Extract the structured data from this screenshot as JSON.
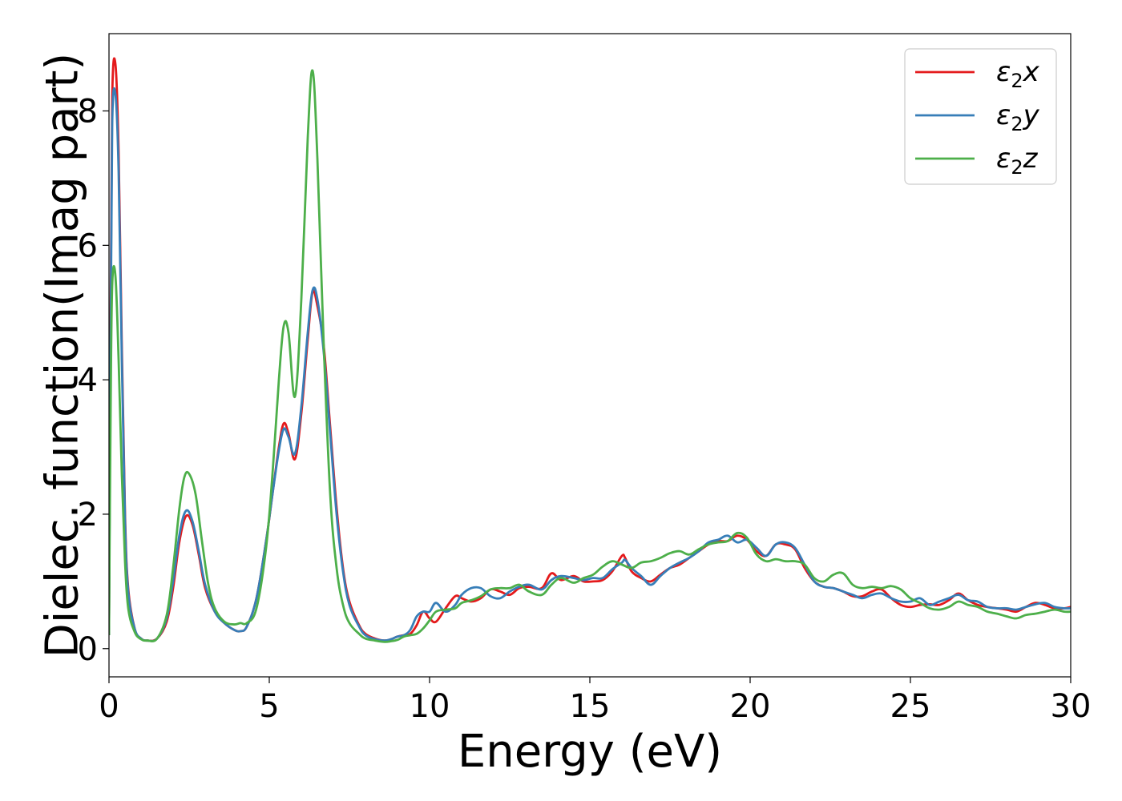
{
  "chart_data": {
    "type": "line",
    "xlabel": "Energy (eV)",
    "ylabel": "Dielec. function(Imag part)",
    "xlim": [
      0,
      30
    ],
    "ylim": [
      -0.42,
      9.15
    ],
    "x_ticks": [
      0,
      5,
      10,
      15,
      20,
      25,
      30
    ],
    "y_ticks": [
      0,
      2,
      4,
      6,
      8
    ],
    "grid": false,
    "legend_position": "top-right",
    "series": [
      {
        "name": "ε₂x",
        "legend_base": "ε",
        "legend_sub": "2",
        "legend_suffix": "x",
        "color": "#e41a1c",
        "x": [
          0,
          0.05,
          0.1,
          0.2,
          0.3,
          0.4,
          0.5,
          0.6,
          0.8,
          1.0,
          1.2,
          1.5,
          1.8,
          2.0,
          2.2,
          2.4,
          2.6,
          2.8,
          3.0,
          3.3,
          3.6,
          3.9,
          4.1,
          4.3,
          4.6,
          4.9,
          5.1,
          5.3,
          5.45,
          5.6,
          5.8,
          6.0,
          6.2,
          6.35,
          6.5,
          6.7,
          6.9,
          7.1,
          7.3,
          7.5,
          7.8,
          8.0,
          8.3,
          8.6,
          8.8,
          9.0,
          9.2,
          9.4,
          9.6,
          9.8,
          10.0,
          10.2,
          10.5,
          10.8,
          11.0,
          11.3,
          11.6,
          11.9,
          12.2,
          12.5,
          12.8,
          13.1,
          13.5,
          13.8,
          14.1,
          14.5,
          14.8,
          15.1,
          15.4,
          15.7,
          16.0,
          16.1,
          16.3,
          16.6,
          16.9,
          17.2,
          17.5,
          17.8,
          18.1,
          18.4,
          18.7,
          19.0,
          19.3,
          19.6,
          19.9,
          20.2,
          20.5,
          20.8,
          21.1,
          21.4,
          21.7,
          22.0,
          22.3,
          22.6,
          22.9,
          23.2,
          23.5,
          23.8,
          24.1,
          24.4,
          24.7,
          25.0,
          25.3,
          25.6,
          25.9,
          26.2,
          26.5,
          26.8,
          27.1,
          27.4,
          27.7,
          28.0,
          28.3,
          28.6,
          28.9,
          29.2,
          29.5,
          29.8,
          30.0
        ],
        "y": [
          0.2,
          5.0,
          8.2,
          8.7,
          7.4,
          4.5,
          2.0,
          0.9,
          0.3,
          0.15,
          0.12,
          0.15,
          0.4,
          0.9,
          1.6,
          1.97,
          1.85,
          1.4,
          0.9,
          0.55,
          0.38,
          0.28,
          0.26,
          0.33,
          0.75,
          1.6,
          2.3,
          3.0,
          3.35,
          3.2,
          2.82,
          3.5,
          4.6,
          5.3,
          5.1,
          4.5,
          3.3,
          2.1,
          1.2,
          0.7,
          0.35,
          0.22,
          0.15,
          0.12,
          0.14,
          0.18,
          0.2,
          0.22,
          0.35,
          0.55,
          0.45,
          0.4,
          0.6,
          0.78,
          0.75,
          0.7,
          0.75,
          0.88,
          0.85,
          0.8,
          0.9,
          0.92,
          0.9,
          1.12,
          1.02,
          1.08,
          1.0,
          1.0,
          1.02,
          1.15,
          1.38,
          1.35,
          1.15,
          1.05,
          1.0,
          1.1,
          1.2,
          1.25,
          1.35,
          1.45,
          1.55,
          1.6,
          1.6,
          1.68,
          1.62,
          1.45,
          1.38,
          1.55,
          1.55,
          1.48,
          1.2,
          1.0,
          0.92,
          0.9,
          0.85,
          0.78,
          0.78,
          0.85,
          0.88,
          0.75,
          0.65,
          0.62,
          0.65,
          0.66,
          0.65,
          0.72,
          0.82,
          0.72,
          0.65,
          0.62,
          0.6,
          0.58,
          0.55,
          0.62,
          0.68,
          0.65,
          0.6,
          0.6,
          0.62
        ]
      },
      {
        "name": "ε₂y",
        "legend_base": "ε",
        "legend_sub": "2",
        "legend_suffix": "y",
        "color": "#377eb8",
        "x": [
          0,
          0.05,
          0.1,
          0.2,
          0.3,
          0.4,
          0.5,
          0.6,
          0.8,
          1.0,
          1.2,
          1.5,
          1.8,
          2.0,
          2.2,
          2.4,
          2.6,
          2.8,
          3.0,
          3.3,
          3.6,
          3.9,
          4.1,
          4.3,
          4.6,
          4.9,
          5.1,
          5.3,
          5.45,
          5.6,
          5.8,
          6.0,
          6.2,
          6.35,
          6.5,
          6.7,
          6.9,
          7.1,
          7.3,
          7.5,
          7.8,
          8.0,
          8.3,
          8.6,
          8.8,
          9.0,
          9.2,
          9.4,
          9.6,
          9.8,
          10.0,
          10.2,
          10.5,
          10.8,
          11.0,
          11.3,
          11.6,
          11.9,
          12.2,
          12.5,
          12.8,
          13.1,
          13.5,
          13.8,
          14.1,
          14.5,
          14.8,
          15.1,
          15.4,
          15.7,
          16.0,
          16.1,
          16.3,
          16.6,
          16.9,
          17.2,
          17.5,
          17.8,
          18.1,
          18.4,
          18.7,
          19.0,
          19.3,
          19.6,
          19.9,
          20.2,
          20.5,
          20.8,
          21.1,
          21.4,
          21.7,
          22.0,
          22.3,
          22.6,
          22.9,
          23.2,
          23.5,
          23.8,
          24.1,
          24.4,
          24.7,
          25.0,
          25.3,
          25.6,
          25.9,
          26.2,
          26.5,
          26.8,
          27.1,
          27.4,
          27.7,
          28.0,
          28.3,
          28.6,
          28.9,
          29.2,
          29.5,
          29.8,
          30.0
        ],
        "y": [
          0.2,
          4.6,
          7.8,
          8.25,
          7.1,
          4.3,
          1.9,
          0.85,
          0.3,
          0.15,
          0.12,
          0.15,
          0.45,
          1.0,
          1.7,
          2.05,
          1.9,
          1.45,
          0.95,
          0.55,
          0.38,
          0.28,
          0.26,
          0.33,
          0.75,
          1.6,
          2.3,
          2.95,
          3.27,
          3.15,
          2.9,
          3.6,
          4.7,
          5.33,
          5.2,
          4.4,
          3.2,
          2.0,
          1.15,
          0.65,
          0.33,
          0.2,
          0.14,
          0.12,
          0.14,
          0.18,
          0.2,
          0.28,
          0.48,
          0.55,
          0.55,
          0.68,
          0.55,
          0.65,
          0.8,
          0.9,
          0.9,
          0.78,
          0.75,
          0.85,
          0.92,
          0.95,
          0.88,
          1.02,
          1.08,
          1.05,
          1.02,
          1.05,
          1.05,
          1.18,
          1.28,
          1.32,
          1.2,
          1.08,
          0.95,
          1.08,
          1.2,
          1.28,
          1.35,
          1.45,
          1.58,
          1.62,
          1.68,
          1.58,
          1.62,
          1.5,
          1.38,
          1.55,
          1.58,
          1.5,
          1.25,
          1.0,
          0.92,
          0.9,
          0.85,
          0.8,
          0.75,
          0.8,
          0.82,
          0.75,
          0.7,
          0.7,
          0.75,
          0.65,
          0.7,
          0.75,
          0.8,
          0.72,
          0.7,
          0.62,
          0.6,
          0.6,
          0.58,
          0.62,
          0.66,
          0.68,
          0.62,
          0.6,
          0.6
        ]
      },
      {
        "name": "ε₂z",
        "legend_base": "ε",
        "legend_sub": "2",
        "legend_suffix": "z",
        "color": "#4daf4a",
        "x": [
          0,
          0.05,
          0.1,
          0.2,
          0.3,
          0.4,
          0.5,
          0.6,
          0.8,
          1.0,
          1.2,
          1.5,
          1.8,
          2.0,
          2.2,
          2.35,
          2.5,
          2.7,
          2.9,
          3.1,
          3.3,
          3.6,
          3.9,
          4.1,
          4.3,
          4.6,
          4.9,
          5.1,
          5.3,
          5.45,
          5.6,
          5.8,
          6.0,
          6.2,
          6.35,
          6.5,
          6.7,
          6.9,
          7.1,
          7.3,
          7.5,
          7.8,
          8.0,
          8.3,
          8.6,
          8.8,
          9.0,
          9.2,
          9.4,
          9.6,
          9.8,
          10.0,
          10.2,
          10.5,
          10.8,
          11.0,
          11.3,
          11.6,
          11.9,
          12.2,
          12.5,
          12.8,
          13.1,
          13.5,
          13.8,
          14.1,
          14.5,
          14.8,
          15.1,
          15.4,
          15.7,
          16.0,
          16.3,
          16.6,
          16.9,
          17.2,
          17.5,
          17.8,
          18.1,
          18.4,
          18.7,
          19.0,
          19.3,
          19.6,
          19.9,
          20.2,
          20.5,
          20.8,
          21.1,
          21.4,
          21.7,
          22.0,
          22.3,
          22.6,
          22.9,
          23.2,
          23.5,
          23.8,
          24.1,
          24.4,
          24.7,
          25.0,
          25.3,
          25.6,
          25.9,
          26.2,
          26.5,
          26.8,
          27.1,
          27.4,
          27.7,
          28.0,
          28.3,
          28.6,
          28.9,
          29.2,
          29.5,
          29.8,
          30.0
        ],
        "y": [
          0.2,
          3.5,
          5.4,
          5.55,
          4.3,
          2.6,
          1.3,
          0.6,
          0.25,
          0.14,
          0.12,
          0.15,
          0.5,
          1.2,
          2.1,
          2.55,
          2.6,
          2.3,
          1.6,
          0.95,
          0.6,
          0.4,
          0.36,
          0.38,
          0.38,
          0.6,
          1.5,
          2.6,
          4.0,
          4.8,
          4.7,
          3.75,
          5.2,
          7.6,
          8.6,
          7.3,
          4.5,
          2.3,
          1.2,
          0.65,
          0.38,
          0.22,
          0.15,
          0.12,
          0.1,
          0.11,
          0.13,
          0.18,
          0.2,
          0.22,
          0.3,
          0.42,
          0.55,
          0.58,
          0.6,
          0.68,
          0.72,
          0.78,
          0.88,
          0.9,
          0.9,
          0.95,
          0.85,
          0.8,
          0.95,
          1.05,
          0.98,
          1.05,
          1.1,
          1.22,
          1.3,
          1.25,
          1.2,
          1.28,
          1.3,
          1.35,
          1.42,
          1.45,
          1.4,
          1.48,
          1.55,
          1.58,
          1.6,
          1.72,
          1.65,
          1.4,
          1.3,
          1.33,
          1.3,
          1.3,
          1.25,
          1.05,
          1.0,
          1.1,
          1.12,
          0.95,
          0.9,
          0.92,
          0.9,
          0.93,
          0.88,
          0.75,
          0.68,
          0.6,
          0.58,
          0.62,
          0.7,
          0.65,
          0.62,
          0.55,
          0.52,
          0.48,
          0.45,
          0.5,
          0.52,
          0.55,
          0.58,
          0.55,
          0.55
        ]
      }
    ]
  }
}
